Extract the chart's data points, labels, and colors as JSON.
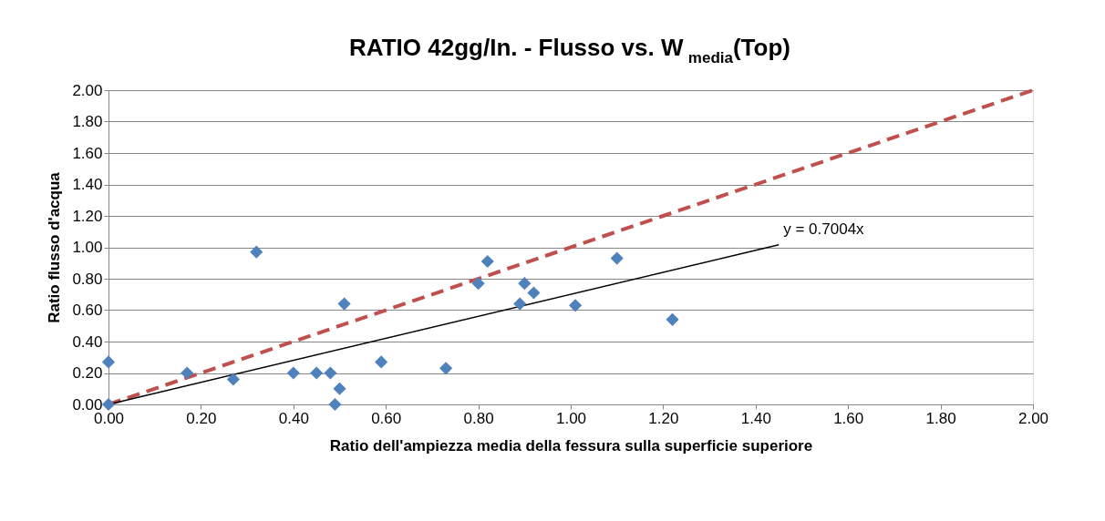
{
  "chart_data": {
    "type": "scatter",
    "title": "RATIO 42gg/In. - Flusso vs. W$_{media}$(Top)",
    "xlabel": "Ratio dell'ampiezza media della fessura sulla superficie superiore",
    "ylabel": "Ratio flusso d'acqua",
    "xlim": [
      0,
      2
    ],
    "ylim": [
      0,
      2
    ],
    "xticks": [
      {
        "value": 0,
        "label": "0.00"
      },
      {
        "value": 0.2,
        "label": "0.20"
      },
      {
        "value": 0.4,
        "label": "0.40"
      },
      {
        "value": 0.6,
        "label": "0.60"
      },
      {
        "value": 0.8,
        "label": "0.80"
      },
      {
        "value": 1,
        "label": "1.00"
      },
      {
        "value": 1.2,
        "label": "1.20"
      },
      {
        "value": 1.4,
        "label": "1.40"
      },
      {
        "value": 1.6,
        "label": "1.60"
      },
      {
        "value": 1.8,
        "label": "1.80"
      },
      {
        "value": 2,
        "label": "2.00"
      }
    ],
    "yticks": [
      {
        "value": 0,
        "label": "0.00"
      },
      {
        "value": 0.2,
        "label": "0.20"
      },
      {
        "value": 0.4,
        "label": "0.40"
      },
      {
        "value": 0.6,
        "label": "0.60"
      },
      {
        "value": 0.8,
        "label": "0.80"
      },
      {
        "value": 1,
        "label": "1.00"
      },
      {
        "value": 1.2,
        "label": "1.20"
      },
      {
        "value": 1.4,
        "label": "1.40"
      },
      {
        "value": 1.6,
        "label": "1.60"
      },
      {
        "value": 1.8,
        "label": "1.80"
      },
      {
        "value": 2,
        "label": "2.00"
      }
    ],
    "grid": "y",
    "series": [
      {
        "type": "line",
        "color": "#c0504d",
        "line_style": "dashed",
        "marker": "none",
        "x": [
          0,
          2
        ],
        "values": [
          0,
          2
        ]
      },
      {
        "type": "line",
        "color": "#000000",
        "line_style": "solid",
        "marker": "none",
        "x": [
          0,
          1.45
        ],
        "values": [
          0,
          1.016
        ]
      },
      {
        "type": "scatter",
        "color": "#4f81bd",
        "marker": "diamond",
        "x": [
          0.0,
          0.0,
          0.17,
          0.27,
          0.32,
          0.4,
          0.45,
          0.48,
          0.49,
          0.5,
          0.51,
          0.59,
          0.73,
          0.8,
          0.82,
          0.89,
          0.9,
          0.92,
          1.01,
          1.1,
          1.22
        ],
        "values": [
          0.27,
          0.0,
          0.2,
          0.16,
          0.97,
          0.2,
          0.2,
          0.2,
          0.0,
          0.1,
          0.64,
          0.27,
          0.23,
          0.77,
          0.91,
          0.64,
          0.77,
          0.71,
          0.63,
          0.93,
          0.54
        ]
      }
    ],
    "annotations": [
      "y = 0.7004x"
    ]
  }
}
